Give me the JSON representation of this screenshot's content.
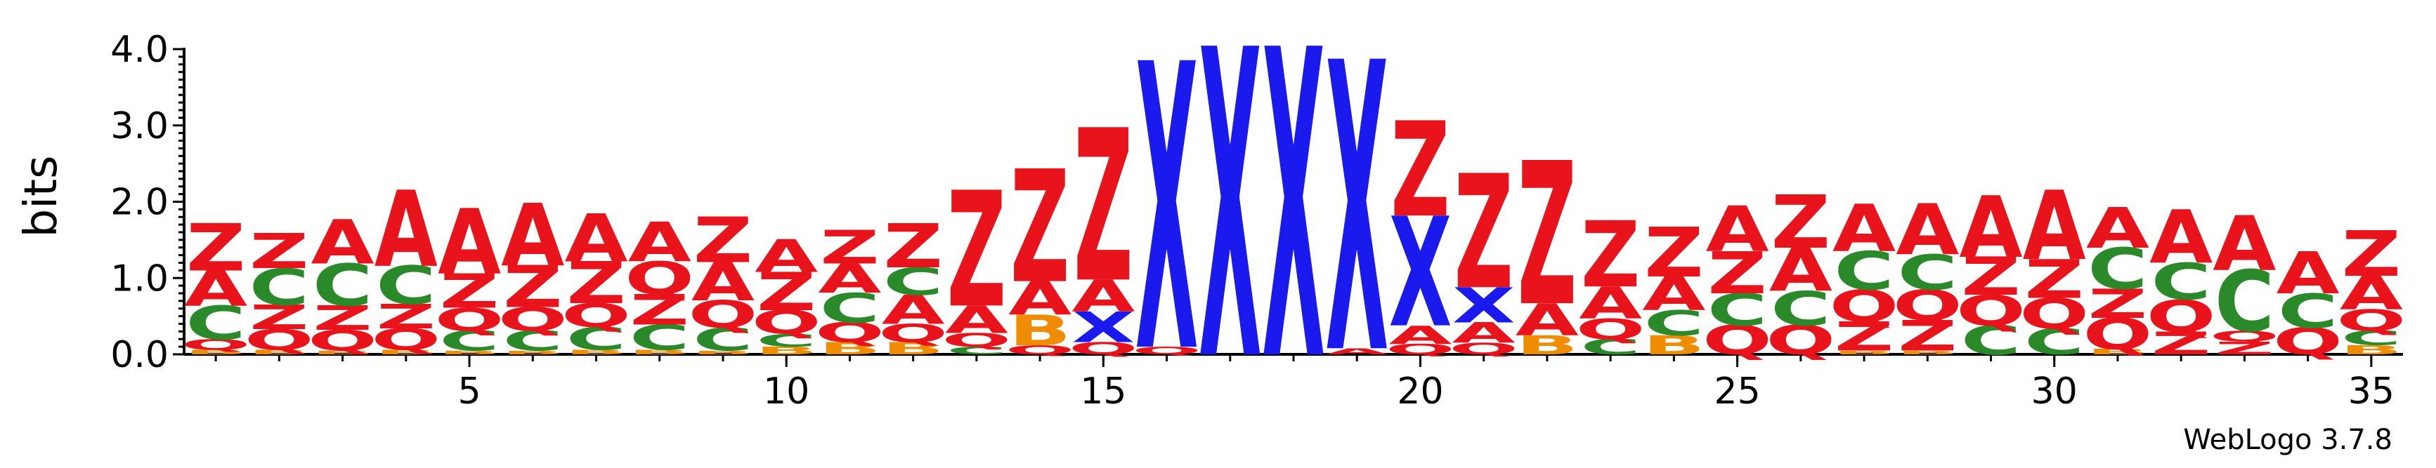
{
  "chart_data": {
    "type": "sequence_logo",
    "ylabel": "bits",
    "ylim": [
      0,
      4.0
    ],
    "y_ticks": [
      "0.0",
      "1.0",
      "2.0",
      "3.0",
      "4.0"
    ],
    "x_ticks": [
      5,
      10,
      15,
      20,
      25,
      30,
      35
    ],
    "credit": "WebLogo 3.7.8",
    "colors": {
      "A": "#e8131b",
      "Z": "#e8131b",
      "C": "#2a8a2a",
      "Q": "#e8131b",
      "B": "#f08c00",
      "X": "#1a1aee"
    },
    "positions": [
      {
        "pos": 1,
        "stack": [
          [
            "B",
            0.06
          ],
          [
            "Q",
            0.14
          ],
          [
            "C",
            0.44
          ],
          [
            "A",
            0.46
          ],
          [
            "Z",
            0.62
          ]
        ]
      },
      {
        "pos": 2,
        "stack": [
          [
            "B",
            0.06
          ],
          [
            "Q",
            0.27
          ],
          [
            "Z",
            0.32
          ],
          [
            "C",
            0.48
          ],
          [
            "Z",
            0.46
          ]
        ]
      },
      {
        "pos": 3,
        "stack": [
          [
            "B",
            0.05
          ],
          [
            "Q",
            0.27
          ],
          [
            "Z",
            0.32
          ],
          [
            "C",
            0.55
          ],
          [
            "A",
            0.58
          ]
        ]
      },
      {
        "pos": 4,
        "stack": [
          [
            "B",
            0.06
          ],
          [
            "Q",
            0.28
          ],
          [
            "Z",
            0.32
          ],
          [
            "C",
            0.5
          ],
          [
            "A",
            1.0
          ]
        ]
      },
      {
        "pos": 5,
        "stack": [
          [
            "B",
            0.05
          ],
          [
            "C",
            0.26
          ],
          [
            "Q",
            0.3
          ],
          [
            "Z",
            0.45
          ],
          [
            "A",
            0.86
          ]
        ]
      },
      {
        "pos": 6,
        "stack": [
          [
            "B",
            0.05
          ],
          [
            "C",
            0.26
          ],
          [
            "Q",
            0.31
          ],
          [
            "Z",
            0.55
          ],
          [
            "A",
            0.82
          ]
        ]
      },
      {
        "pos": 7,
        "stack": [
          [
            "B",
            0.06
          ],
          [
            "C",
            0.3
          ],
          [
            "Q",
            0.31
          ],
          [
            "Z",
            0.55
          ],
          [
            "A",
            0.63
          ]
        ]
      },
      {
        "pos": 8,
        "stack": [
          [
            "B",
            0.06
          ],
          [
            "C",
            0.33
          ],
          [
            "Z",
            0.4
          ],
          [
            "Q",
            0.43
          ],
          [
            "A",
            0.52
          ]
        ]
      },
      {
        "pos": 9,
        "stack": [
          [
            "B",
            0.05
          ],
          [
            "C",
            0.3
          ],
          [
            "Q",
            0.36
          ],
          [
            "A",
            0.5
          ],
          [
            "Z",
            0.6
          ]
        ]
      },
      {
        "pos": 10,
        "stack": [
          [
            "B",
            0.1
          ],
          [
            "C",
            0.17
          ],
          [
            "Q",
            0.31
          ],
          [
            "Z",
            0.5
          ],
          [
            "A",
            0.43
          ]
        ]
      },
      {
        "pos": 11,
        "stack": [
          [
            "B",
            0.16
          ],
          [
            "Q",
            0.26
          ],
          [
            "C",
            0.39
          ],
          [
            "A",
            0.38
          ],
          [
            "Z",
            0.44
          ]
        ]
      },
      {
        "pos": 12,
        "stack": [
          [
            "B",
            0.16
          ],
          [
            "Q",
            0.24
          ],
          [
            "A",
            0.38
          ],
          [
            "C",
            0.36
          ],
          [
            "Z",
            0.58
          ]
        ]
      },
      {
        "pos": 13,
        "stack": [
          [
            "C",
            0.1
          ],
          [
            "Q",
            0.18
          ],
          [
            "A",
            0.36
          ],
          [
            "Z",
            1.52
          ]
        ]
      },
      {
        "pos": 14,
        "stack": [
          [
            "Q",
            0.12
          ],
          [
            "B",
            0.4
          ],
          [
            "A",
            0.44
          ],
          [
            "Z",
            1.48
          ]
        ]
      },
      {
        "pos": 15,
        "stack": [
          [
            "Q",
            0.16
          ],
          [
            "X",
            0.4
          ],
          [
            "A",
            0.42
          ],
          [
            "Z",
            2.0
          ]
        ]
      },
      {
        "pos": 16,
        "stack": [
          [
            "Q",
            0.1
          ],
          [
            "X",
            3.76
          ]
        ]
      },
      {
        "pos": 17,
        "stack": [
          [
            "X",
            4.05
          ]
        ]
      },
      {
        "pos": 18,
        "stack": [
          [
            "X",
            4.05
          ]
        ]
      },
      {
        "pos": 19,
        "stack": [
          [
            "A",
            0.08
          ],
          [
            "X",
            3.8
          ]
        ]
      },
      {
        "pos": 20,
        "stack": [
          [
            "Q",
            0.14
          ],
          [
            "A",
            0.24
          ],
          [
            "X",
            1.44
          ],
          [
            "Z",
            1.25
          ]
        ]
      },
      {
        "pos": 21,
        "stack": [
          [
            "Q",
            0.15
          ],
          [
            "A",
            0.27
          ],
          [
            "X",
            0.46
          ],
          [
            "Z",
            1.5
          ]
        ]
      },
      {
        "pos": 22,
        "stack": [
          [
            "B",
            0.25
          ],
          [
            "A",
            0.42
          ],
          [
            "Z",
            1.88
          ]
        ]
      },
      {
        "pos": 23,
        "stack": [
          [
            "C",
            0.2
          ],
          [
            "Q",
            0.27
          ],
          [
            "A",
            0.42
          ],
          [
            "Z",
            0.87
          ]
        ]
      },
      {
        "pos": 24,
        "stack": [
          [
            "B",
            0.25
          ],
          [
            "C",
            0.33
          ],
          [
            "A",
            0.44
          ],
          [
            "Z",
            0.65
          ]
        ]
      },
      {
        "pos": 25,
        "stack": [
          [
            "Q",
            0.38
          ],
          [
            "C",
            0.42
          ],
          [
            "Z",
            0.55
          ],
          [
            "A",
            0.6
          ]
        ]
      },
      {
        "pos": 26,
        "stack": [
          [
            "Q",
            0.38
          ],
          [
            "C",
            0.45
          ],
          [
            "A",
            0.57
          ],
          [
            "Z",
            0.7
          ]
        ]
      },
      {
        "pos": 27,
        "stack": [
          [
            "B",
            0.05
          ],
          [
            "Z",
            0.38
          ],
          [
            "Q",
            0.42
          ],
          [
            "C",
            0.5
          ],
          [
            "A",
            0.62
          ]
        ]
      },
      {
        "pos": 28,
        "stack": [
          [
            "B",
            0.05
          ],
          [
            "Z",
            0.4
          ],
          [
            "Q",
            0.4
          ],
          [
            "C",
            0.46
          ],
          [
            "A",
            0.67
          ]
        ]
      },
      {
        "pos": 29,
        "stack": [
          [
            "C",
            0.38
          ],
          [
            "Q",
            0.4
          ],
          [
            "Z",
            0.5
          ],
          [
            "A",
            0.81
          ]
        ]
      },
      {
        "pos": 30,
        "stack": [
          [
            "C",
            0.34
          ],
          [
            "Q",
            0.4
          ],
          [
            "Z",
            0.51
          ],
          [
            "A",
            0.91
          ]
        ]
      },
      {
        "pos": 31,
        "stack": [
          [
            "B",
            0.07
          ],
          [
            "Q",
            0.41
          ],
          [
            "Z",
            0.38
          ],
          [
            "C",
            0.54
          ],
          [
            "A",
            0.53
          ]
        ]
      },
      {
        "pos": 32,
        "stack": [
          [
            "Z",
            0.3
          ],
          [
            "Q",
            0.42
          ],
          [
            "C",
            0.48
          ],
          [
            "A",
            0.7
          ]
        ]
      },
      {
        "pos": 33,
        "stack": [
          [
            "Z",
            0.17
          ],
          [
            "Q",
            0.14
          ],
          [
            "C",
            0.8
          ],
          [
            "A",
            0.72
          ]
        ]
      },
      {
        "pos": 34,
        "stack": [
          [
            "Q",
            0.35
          ],
          [
            "C",
            0.45
          ],
          [
            "A",
            0.55
          ]
        ]
      },
      {
        "pos": 35,
        "stack": [
          [
            "B",
            0.12
          ],
          [
            "C",
            0.19
          ],
          [
            "Q",
            0.28
          ],
          [
            "A",
            0.44
          ],
          [
            "Z",
            0.6
          ]
        ]
      }
    ]
  }
}
